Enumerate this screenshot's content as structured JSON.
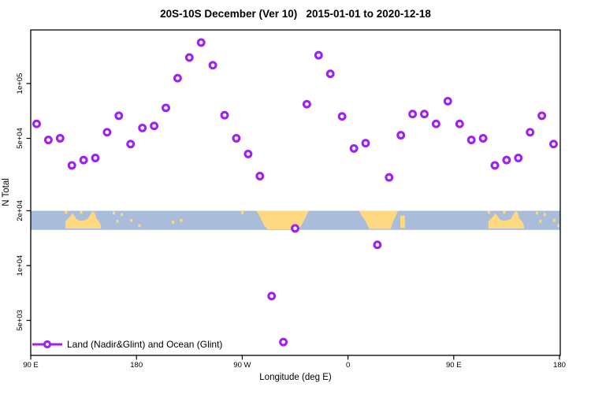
{
  "title": "20S-10S December (Ver 10)   2015-01-01 to 2020-12-18",
  "chart_data": {
    "type": "scatter",
    "title": "20S-10S December (Ver 10)   2015-01-01 to 2020-12-18",
    "xlabel": "Longitude (deg E)",
    "ylabel": "N Total",
    "y_scale": "log",
    "grid": false,
    "axis_ranges": {
      "x_axis_deg": [
        90,
        540
      ],
      "y_top_value": 197000,
      "y_bottom_value": 3200
    },
    "x_axis_ticks": [
      {
        "value": 90,
        "label": "90 E"
      },
      {
        "value": 180,
        "label": "180"
      },
      {
        "value": 270,
        "label": "90 W"
      },
      {
        "value": 360,
        "label": "0"
      },
      {
        "value": 450,
        "label": "90 E"
      },
      {
        "value": 540,
        "label": "180"
      }
    ],
    "y_axis_ticks": [
      {
        "value": 100000,
        "label": "1e+05"
      },
      {
        "value": 50000,
        "label": "5e+04"
      },
      {
        "value": 20000,
        "label": "2e+04"
      },
      {
        "value": 10000,
        "label": "1e+04"
      },
      {
        "value": 5000,
        "label": "5e+03"
      }
    ],
    "legend": {
      "label": "Land (Nadir&Glint) and Ocean (Glint)",
      "position": "bottom-left",
      "marker": "open-circle-on-line"
    },
    "series": [
      {
        "name": "Land (Nadir&Glint) and Ocean (Glint)",
        "marker": "open-circle",
        "marker_color": "#A020F0",
        "points_lon_n": [
          [
            95,
            60000
          ],
          [
            105,
            49000
          ],
          [
            115,
            50000
          ],
          [
            125,
            35500
          ],
          [
            135,
            38000
          ],
          [
            145,
            39000
          ],
          [
            155,
            54000
          ],
          [
            165,
            66500
          ],
          [
            175,
            46500
          ],
          [
            185,
            57000
          ],
          [
            195,
            58500
          ],
          [
            205,
            73500
          ],
          [
            215,
            107000
          ],
          [
            225,
            139000
          ],
          [
            235,
            168000
          ],
          [
            245,
            126000
          ],
          [
            255,
            67000
          ],
          [
            265,
            50000
          ],
          [
            275,
            41000
          ],
          [
            285,
            31000
          ],
          [
            295,
            6800
          ],
          [
            305,
            3800
          ],
          [
            315,
            16000
          ],
          [
            325,
            77000
          ],
          [
            335,
            143000
          ],
          [
            345,
            113000
          ],
          [
            355,
            66000
          ],
          [
            365,
            44000
          ],
          [
            375,
            47000
          ],
          [
            385,
            13000
          ],
          [
            395,
            30500
          ],
          [
            405,
            52000
          ],
          [
            415,
            68000
          ],
          [
            425,
            68000
          ],
          [
            435,
            60000
          ],
          [
            445,
            80000
          ],
          [
            455,
            60000
          ],
          [
            465,
            49000
          ],
          [
            475,
            50000
          ],
          [
            485,
            35500
          ],
          [
            495,
            38000
          ],
          [
            505,
            39000
          ],
          [
            515,
            54000
          ],
          [
            525,
            66500
          ],
          [
            535,
            46500
          ]
        ]
      }
    ],
    "map_band": {
      "description": "20S-10S world coastline strip",
      "ocean_color": "#A9BCD9",
      "land_color": "#FFD982",
      "top_value": 20000,
      "bottom_value": 15700,
      "land_polygons": [
        {
          "name": "australia-newguinea-west",
          "points": [
            [
              119.5,
              0.93
            ],
            [
              119.5,
              0.55
            ],
            [
              121.5,
              0.42
            ],
            [
              123.5,
              0.3
            ],
            [
              125.5,
              0.12
            ],
            [
              127.5,
              0.3
            ],
            [
              129,
              0.45
            ],
            [
              132,
              0.52
            ],
            [
              135.5,
              0.5
            ],
            [
              138.5,
              0.42
            ],
            [
              141.5,
              0.12
            ],
            [
              143,
              0.02
            ],
            [
              144.5,
              0.12
            ],
            [
              146,
              0.42
            ],
            [
              147.5,
              0.5
            ],
            [
              149,
              0.65
            ],
            [
              149.8,
              0.8
            ],
            [
              149.8,
              0.93
            ]
          ]
        },
        {
          "name": "south-america",
          "points": [
            [
              282,
              0.0
            ],
            [
              284.5,
              0.25
            ],
            [
              286.5,
              0.5
            ],
            [
              288.5,
              0.75
            ],
            [
              291.5,
              0.97
            ],
            [
              318,
              0.97
            ],
            [
              320.5,
              0.75
            ],
            [
              323,
              0.45
            ],
            [
              325.5,
              0.15
            ],
            [
              326.5,
              0.0
            ]
          ]
        },
        {
          "name": "africa",
          "points": [
            [
              369.5,
              0.0
            ],
            [
              402.5,
              0.0
            ],
            [
              400.5,
              0.3
            ],
            [
              398,
              0.6
            ],
            [
              396.5,
              0.95
            ],
            [
              378,
              0.95
            ],
            [
              375,
              0.55
            ],
            [
              371,
              0.2
            ]
          ]
        },
        {
          "name": "madagascar",
          "points": [
            [
              404.5,
              0.25
            ],
            [
              408.5,
              0.25
            ],
            [
              408.5,
              0.9
            ],
            [
              404.5,
              0.9
            ]
          ]
        },
        {
          "name": "australia-newguinea-east",
          "points": [
            [
              479.5,
              0.93
            ],
            [
              479.5,
              0.55
            ],
            [
              481.5,
              0.42
            ],
            [
              483.5,
              0.3
            ],
            [
              485.5,
              0.12
            ],
            [
              487.5,
              0.3
            ],
            [
              489,
              0.45
            ],
            [
              492,
              0.52
            ],
            [
              495.5,
              0.5
            ],
            [
              498.5,
              0.42
            ],
            [
              501.5,
              0.12
            ],
            [
              503,
              0.02
            ],
            [
              504.5,
              0.12
            ],
            [
              506,
              0.42
            ],
            [
              507.5,
              0.5
            ],
            [
              509,
              0.65
            ],
            [
              509.8,
              0.8
            ],
            [
              509.8,
              0.93
            ]
          ]
        }
      ],
      "land_specks": [
        {
          "lon": 120.0,
          "frac": 0.08
        },
        {
          "lon": 133.0,
          "frac": 0.08
        },
        {
          "lon": 160.8,
          "frac": 0.12
        },
        {
          "lon": 163.8,
          "frac": 0.55
        },
        {
          "lon": 167.5,
          "frac": 0.2
        },
        {
          "lon": 175.5,
          "frac": 0.5
        },
        {
          "lon": 182.5,
          "frac": 0.78
        },
        {
          "lon": 211.0,
          "frac": 0.6
        },
        {
          "lon": 218.0,
          "frac": 0.5
        },
        {
          "lon": 270.0,
          "frac": 0.1
        },
        {
          "lon": 480.0,
          "frac": 0.08
        },
        {
          "lon": 493.0,
          "frac": 0.08
        },
        {
          "lon": 520.8,
          "frac": 0.12
        },
        {
          "lon": 523.8,
          "frac": 0.55
        },
        {
          "lon": 527.5,
          "frac": 0.2
        },
        {
          "lon": 535.5,
          "frac": 0.5
        },
        {
          "lon": 539.0,
          "frac": 0.78
        }
      ]
    }
  }
}
